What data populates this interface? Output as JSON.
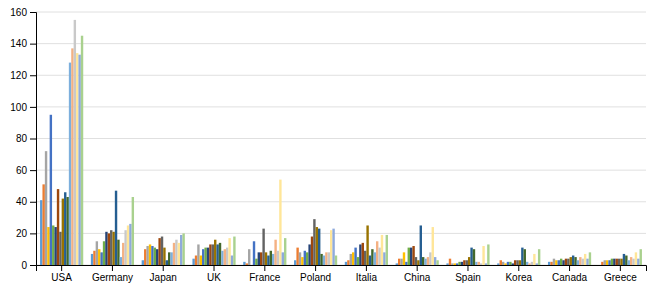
{
  "chart_data": {
    "type": "bar",
    "categories": [
      "USA",
      "Germany",
      "Japan",
      "UK",
      "France",
      "Poland",
      "Italia",
      "China",
      "Spain",
      "Korea",
      "Canada",
      "Greece"
    ],
    "series": [
      {
        "color": "#5b9bd5",
        "values": [
          41,
          7,
          3,
          4,
          2,
          3,
          2,
          1,
          1,
          1,
          2,
          0
        ]
      },
      {
        "color": "#ed7d31",
        "values": [
          51,
          9,
          10,
          6,
          1,
          11,
          3,
          4,
          4,
          3,
          2,
          2
        ]
      },
      {
        "color": "#a5a5a5",
        "values": [
          72,
          15,
          12,
          13,
          10,
          8,
          7,
          4,
          1,
          2,
          4,
          3
        ]
      },
      {
        "color": "#ffc000",
        "values": [
          24,
          10,
          13,
          6,
          0,
          5,
          8,
          8,
          1,
          1,
          3,
          3
        ]
      },
      {
        "color": "#4472c4",
        "values": [
          95,
          8,
          12,
          10,
          15,
          9,
          11,
          2,
          1,
          2,
          3,
          3
        ]
      },
      {
        "color": "#70ad47",
        "values": [
          25,
          15,
          11,
          11,
          4,
          8,
          5,
          11,
          2,
          2,
          4,
          4
        ]
      },
      {
        "color": "#264478",
        "values": [
          24,
          21,
          10,
          11,
          8,
          13,
          13,
          11,
          2,
          1,
          3,
          4
        ]
      },
      {
        "color": "#9e480e",
        "values": [
          48,
          20,
          17,
          13,
          8,
          18,
          14,
          12,
          3,
          3,
          4,
          4
        ]
      },
      {
        "color": "#636363",
        "values": [
          21,
          22,
          18,
          13,
          23,
          29,
          9,
          5,
          3,
          3,
          4,
          4
        ]
      },
      {
        "color": "#997300",
        "values": [
          42,
          21,
          11,
          16,
          8,
          24,
          25,
          3,
          5,
          3,
          5,
          4
        ]
      },
      {
        "color": "#255e91",
        "values": [
          46,
          47,
          3,
          13,
          6,
          23,
          6,
          25,
          11,
          11,
          6,
          7
        ]
      },
      {
        "color": "#43682b",
        "values": [
          43,
          16,
          8,
          14,
          9,
          7,
          10,
          5,
          10,
          10,
          5,
          6
        ]
      },
      {
        "color": "#7cafdd",
        "values": [
          128,
          5,
          8,
          9,
          7,
          6,
          8,
          4,
          2,
          2,
          3,
          3
        ]
      },
      {
        "color": "#f4b183",
        "values": [
          137,
          14,
          14,
          10,
          16,
          8,
          15,
          5,
          2,
          1,
          5,
          5
        ]
      },
      {
        "color": "#c9c9c9",
        "values": [
          155,
          22,
          16,
          11,
          9,
          8,
          11,
          8,
          1,
          2,
          4,
          4
        ]
      },
      {
        "color": "#ffe699",
        "values": [
          134,
          25,
          14,
          17,
          54,
          22,
          19,
          24,
          12,
          7,
          7,
          8
        ]
      },
      {
        "color": "#8faadc",
        "values": [
          133,
          26,
          19,
          6,
          8,
          23,
          8,
          5,
          1,
          1,
          4,
          4
        ]
      },
      {
        "color": "#a9d18e",
        "values": [
          145,
          43,
          20,
          18,
          17,
          6,
          19,
          3,
          13,
          10,
          8,
          10
        ]
      }
    ],
    "ylim": [
      0,
      160
    ],
    "yticks": [
      0,
      20,
      40,
      60,
      80,
      100,
      120,
      140,
      160
    ],
    "grid": true
  }
}
